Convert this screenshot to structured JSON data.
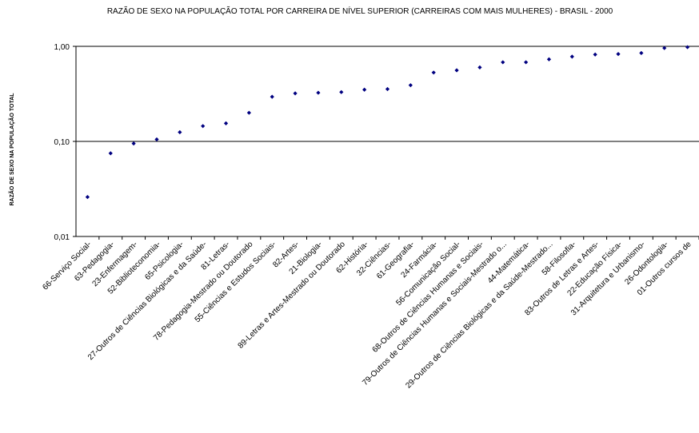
{
  "chart_data": {
    "type": "scatter",
    "title": "RAZÃO DE SEXO NA POPULAÇÃO TOTAL POR CARREIRA DE NÍVEL SUPERIOR (CARREIRAS COM MAIS MULHERES) - BRASIL - 2000",
    "xlabel": "",
    "ylabel": "RAZÃO DE SEXO NA POPULAÇÃO TOTAL",
    "y_scale": "log",
    "ylim": [
      0.01,
      1.0
    ],
    "y_ticks": [
      "0,01",
      "0,10",
      "1,00"
    ],
    "y_tick_values": [
      0.01,
      0.1,
      1.0
    ],
    "grid": "horizontal",
    "legend": "none",
    "marker_color": "#000080",
    "categories": [
      "66-Serviço Social-",
      "63-Pedagogia-",
      "23-Enfermagem-",
      "52-Biblioteconomia-",
      "65-Psicologia-",
      "27-Outros de Ciências Biológicas e da Saúde-",
      "81-Letras-",
      "78-Pedagogia-Mestrado ou Doutorado",
      "55-Ciências e Estudos Sociais-",
      "82-Artes-",
      "21-Biologia-",
      "89-Letras e Artes-Mestrado ou Doutorado",
      "62-História-",
      "32-Ciências-",
      "61-Geografia-",
      "24-Farmácia-",
      "56-Comunicação Social-",
      "68-Outros de Ciências Humanas e Sociais-",
      "79-Outros de Ciências Humanas e Sociais-Mestrado o...",
      "44-Matemática-",
      "29-Outros de Ciências Biológicas e da Saúde-Mestrado...",
      "58-Filosofia-",
      "83-Outros de Letras e Artes-",
      "22-Educação Física-",
      "31-Arquitetura e Urbanismo-",
      "26-Odontologia-",
      "01-Outros cursos de"
    ],
    "values": [
      0.026,
      0.075,
      0.095,
      0.105,
      0.125,
      0.145,
      0.155,
      0.2,
      0.295,
      0.32,
      0.325,
      0.33,
      0.35,
      0.355,
      0.39,
      0.53,
      0.56,
      0.6,
      0.68,
      0.68,
      0.73,
      0.78,
      0.82,
      0.83,
      0.85,
      0.96,
      0.98
    ]
  }
}
